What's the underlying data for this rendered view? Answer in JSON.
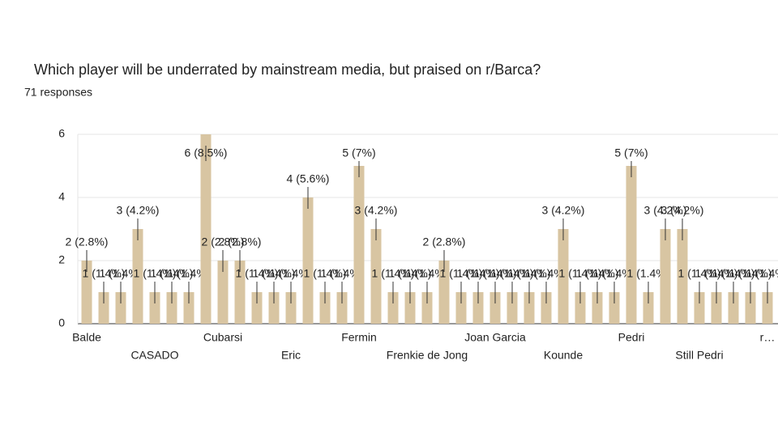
{
  "chart_data": {
    "type": "bar",
    "title": "Which player will be underrated by mainstream media, but praised on r/Barca?",
    "subtitle": "71 responses",
    "categories": [
      "Balde",
      null,
      null,
      null,
      "CASADO",
      null,
      null,
      null,
      "Cubarsi",
      null,
      null,
      null,
      "Eric",
      null,
      null,
      null,
      "Fermin",
      null,
      null,
      null,
      "Frenkie de Jong",
      null,
      null,
      null,
      "Joan Garcia",
      null,
      null,
      null,
      "Kounde",
      null,
      null,
      null,
      "Pedri",
      null,
      null,
      null,
      "Still Pedri",
      null,
      null,
      null,
      "r…"
    ],
    "values": [
      2,
      1,
      1,
      3,
      1,
      1,
      1,
      6,
      2,
      2,
      1,
      1,
      1,
      4,
      1,
      1,
      5,
      3,
      1,
      1,
      1,
      2,
      1,
      1,
      1,
      1,
      1,
      1,
      3,
      1,
      1,
      1,
      5,
      1,
      3,
      3,
      1,
      1,
      1,
      1,
      1
    ],
    "value_labels": [
      "2 (2.8%)",
      "1 (1.4%)",
      "1 (1.4%)",
      "3 (4.2%)",
      "1 (1.4%)",
      "1 (1.4%)",
      "1 (1.4%)",
      "6 (8.5%)",
      "2 (2.8%)",
      "2 (2.8%)",
      "1 (1.4%)",
      "1 (1.4%)",
      "1 (1.4%)",
      "4 (5.6%)",
      "1 (1.4%)",
      "1 (1.4%)",
      "5 (7%)",
      "3 (4.2%)",
      "1 (1.4%)",
      "1 (1.4%)",
      "1 (1.4%)",
      "2 (2.8%)",
      "1 (1.4%)",
      "1 (1.4%)",
      "1 (1.4%)",
      "1 (1.4%)",
      "1 (1.4%)",
      "1 (1.4%)",
      "3 (4.2%)",
      "1 (1.4%)",
      "1 (1.4%)",
      "1 (1.4%)",
      "5 (7%)",
      "1 (1.4%)",
      "3 (4.2%)",
      "3 (4.2%)",
      "1 (1.4%)",
      "1 (1.4%)",
      "1 (1.4%)",
      "1 (1.4%)",
      "1 (1.4%)"
    ],
    "color": "#d8c5a2",
    "ylim": [
      0,
      6
    ],
    "yticks": [
      0,
      2,
      4,
      6
    ],
    "grid": true
  }
}
